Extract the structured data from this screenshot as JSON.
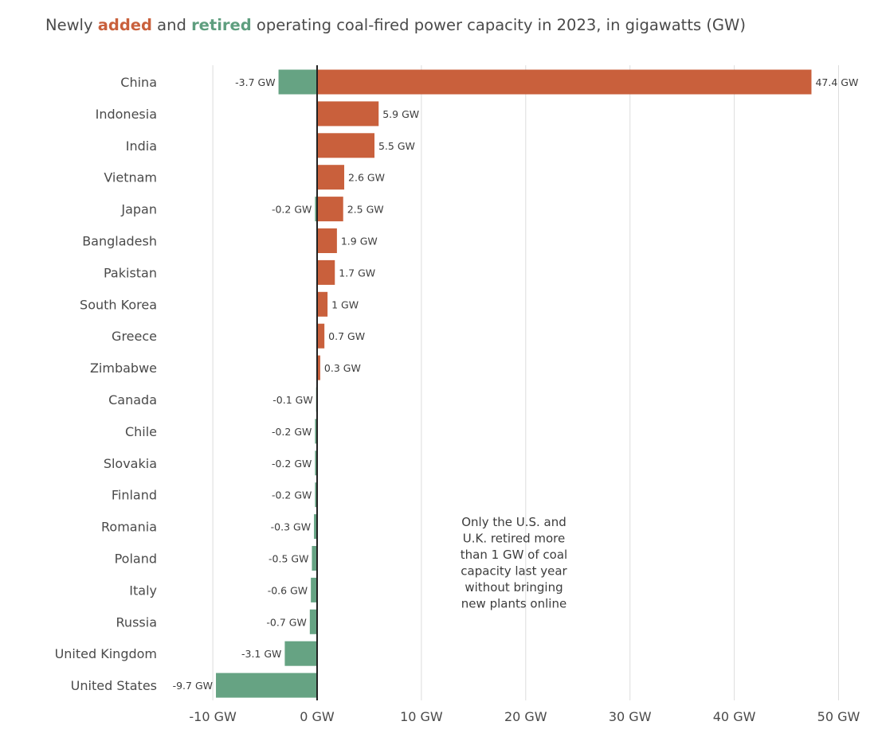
{
  "title": {
    "prefix": "Newly ",
    "added": "added",
    "middle": " and ",
    "retired": "retired",
    "suffix": " operating coal-fired power capacity in 2023, in gigawatts (GW)"
  },
  "colors": {
    "added": "#c9603c",
    "retired": "#66a383",
    "axis_line": "#222222",
    "grid": "#dddddd"
  },
  "chart_data": {
    "type": "bar",
    "orientation": "horizontal",
    "unit": "GW",
    "categories": [
      "China",
      "Indonesia",
      "India",
      "Vietnam",
      "Japan",
      "Bangladesh",
      "Pakistan",
      "South Korea",
      "Greece",
      "Zimbabwe",
      "Canada",
      "Chile",
      "Slovakia",
      "Finland",
      "Romania",
      "Poland",
      "Italy",
      "Russia",
      "United Kingdom",
      "United States"
    ],
    "series": [
      {
        "name": "added",
        "values": [
          47.4,
          5.9,
          5.5,
          2.6,
          2.5,
          1.9,
          1.7,
          1,
          0.7,
          0.3,
          null,
          null,
          null,
          null,
          null,
          null,
          null,
          null,
          null,
          null
        ],
        "labels": [
          "47.4 GW",
          "5.9 GW",
          "5.5 GW",
          "2.6 GW",
          "2.5 GW",
          "1.9 GW",
          "1.7 GW",
          "1 GW",
          "0.7 GW",
          "0.3 GW",
          "",
          "",
          "",
          "",
          "",
          "",
          "",
          "",
          "",
          ""
        ]
      },
      {
        "name": "retired",
        "values": [
          -3.7,
          null,
          null,
          null,
          -0.2,
          null,
          null,
          null,
          null,
          null,
          -0.1,
          -0.2,
          -0.2,
          -0.2,
          -0.3,
          -0.5,
          -0.6,
          -0.7,
          -3.1,
          -9.7
        ],
        "labels": [
          "-3.7 GW",
          "",
          "",
          "",
          "-0.2 GW",
          "",
          "",
          "",
          "",
          "",
          "-0.1 GW",
          "-0.2 GW",
          "-0.2 GW",
          "-0.2 GW",
          "-0.3 GW",
          "-0.5 GW",
          "-0.6 GW",
          "-0.7 GW",
          "-3.1 GW",
          "-9.7 GW"
        ]
      }
    ],
    "xlim": [
      -10,
      50
    ],
    "xticks": [
      -10,
      0,
      10,
      20,
      30,
      40,
      50
    ],
    "xtick_labels": [
      "-10 GW",
      "0 GW",
      "10 GW",
      "20 GW",
      "30 GW",
      "40 GW",
      "50 GW"
    ],
    "grid": true,
    "annotation": [
      "Only the U.S. and",
      "U.K. retired more",
      "than 1 GW of coal",
      "capacity last year",
      "without bringing",
      "new plants online"
    ]
  }
}
